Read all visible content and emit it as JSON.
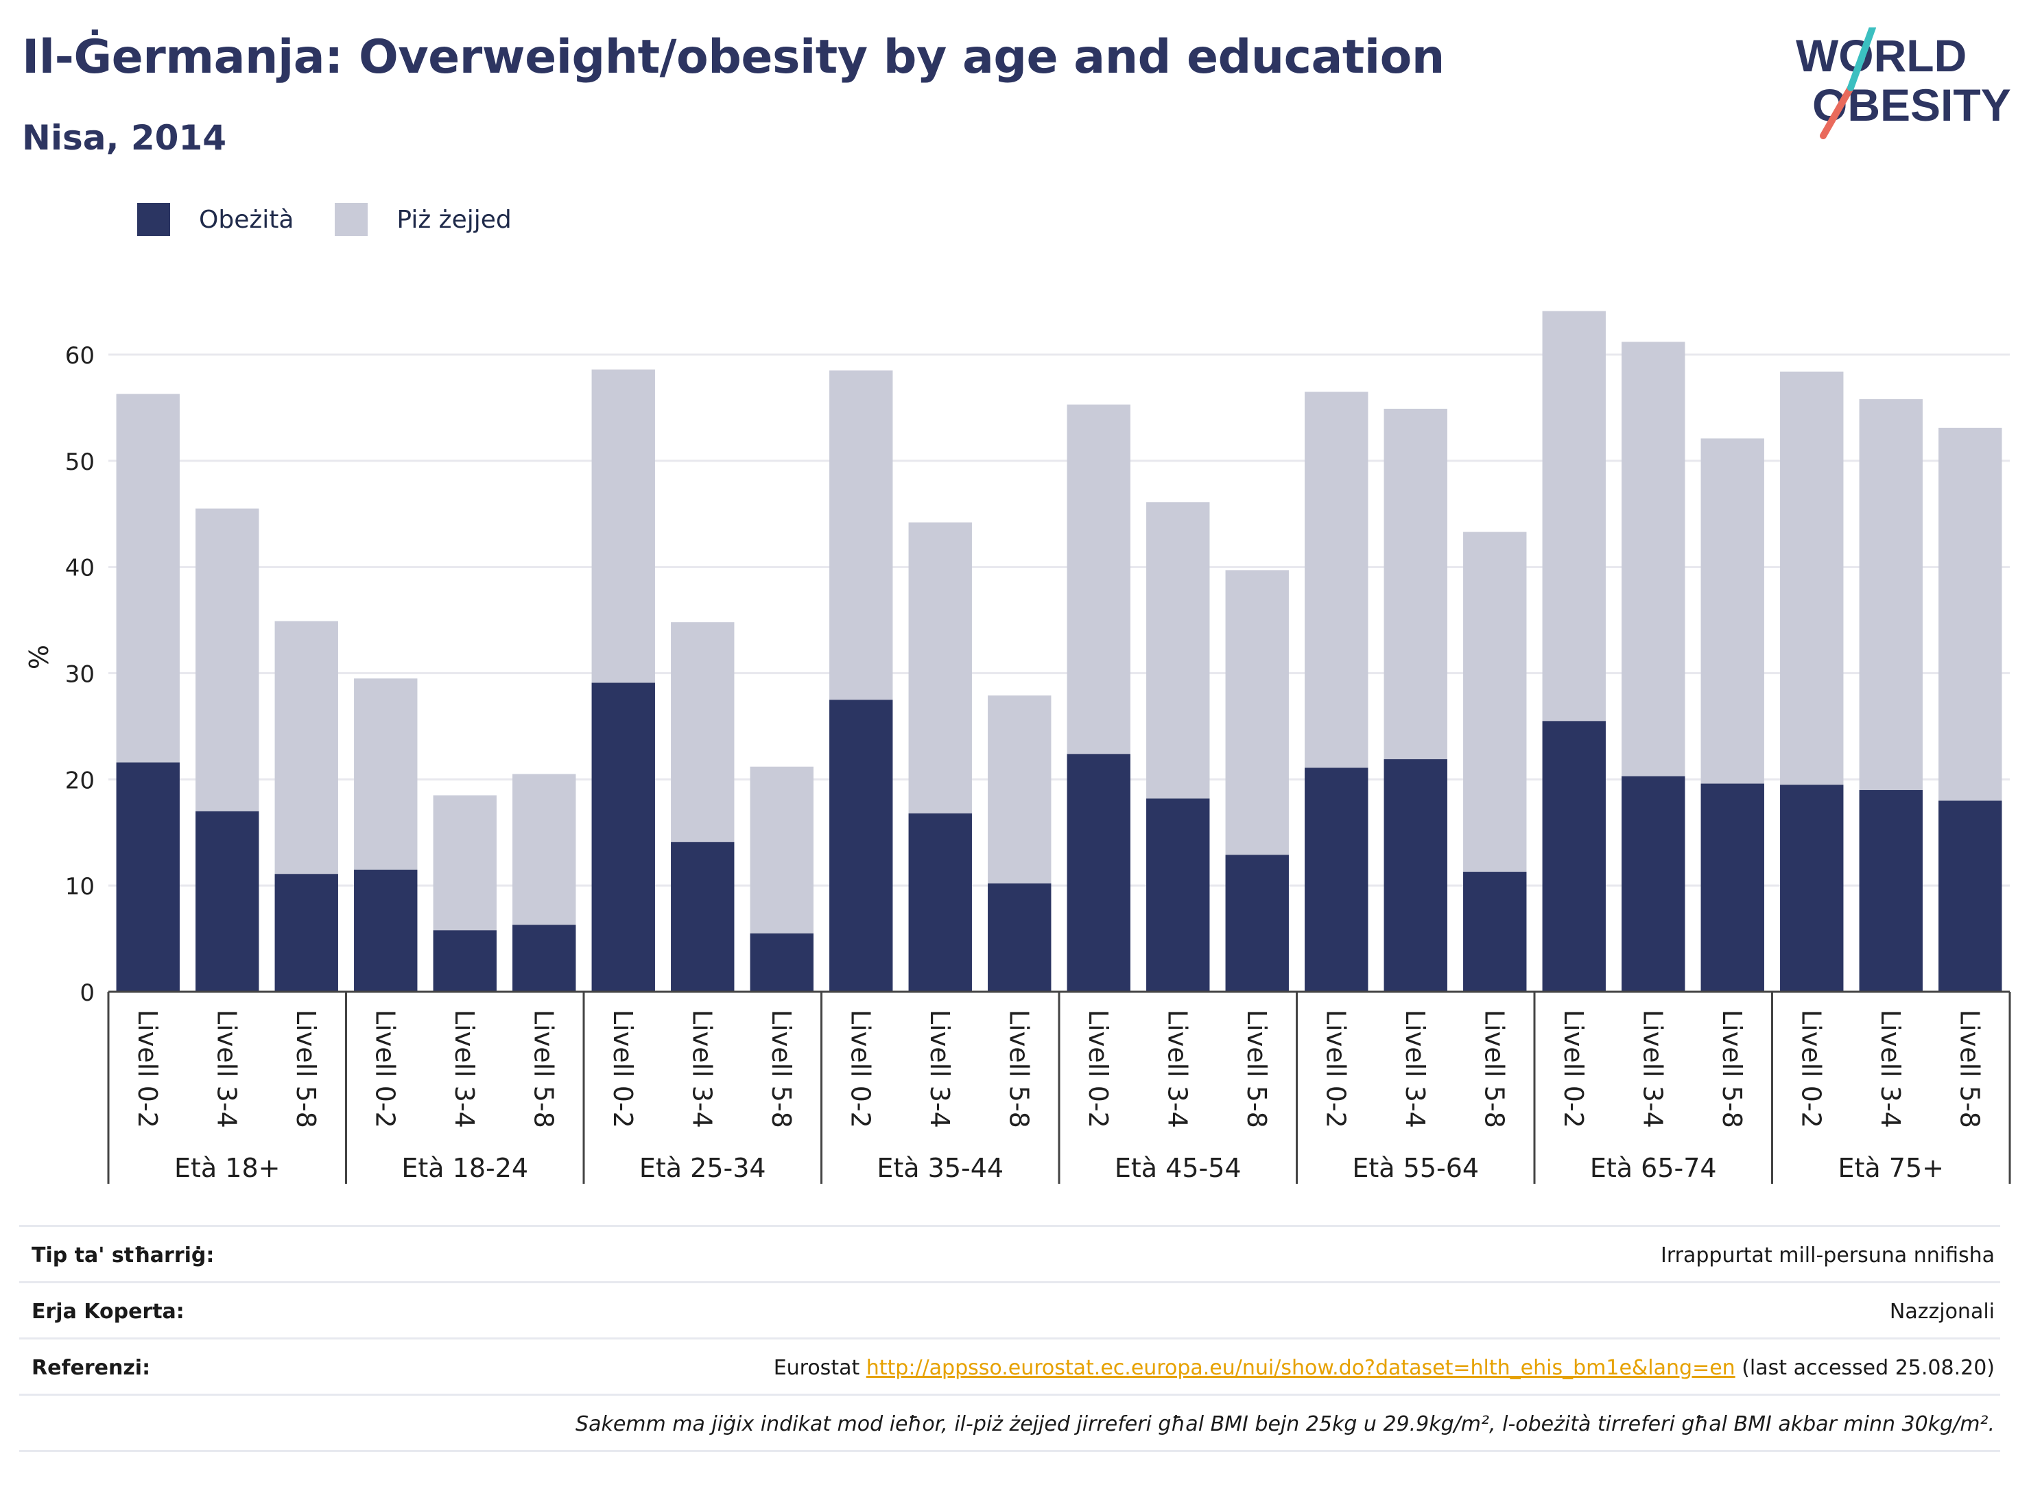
{
  "header": {
    "title": "Il-Ġermanja: Overweight/obesity by age and education",
    "subtitle": "Nisa, 2014",
    "logo_line1": "WORLD",
    "logo_line2": "OBESITY"
  },
  "colors": {
    "obese": "#2b3562",
    "overweight": "#c9cbd8",
    "logo_text": "#2d3561",
    "logo_slash_teal": "#3bbfc0",
    "logo_slash_red": "#e96a5c",
    "link": "#e6a100"
  },
  "chart_data": {
    "type": "bar",
    "stacked": true,
    "ylabel": "%",
    "ylim": [
      0,
      65
    ],
    "yticks": [
      0,
      10,
      20,
      30,
      40,
      50,
      60
    ],
    "grid": true,
    "legend_position": "top-left",
    "groups": [
      "Età 18+",
      "Età 18-24",
      "Età 25-34",
      "Età 35-44",
      "Età 45-54",
      "Età 55-64",
      "Età 65-74",
      "Età 75+"
    ],
    "levels": [
      "Livell 0-2",
      "Livell 3-4",
      "Livell 5-8"
    ],
    "series": [
      {
        "name": "Obeżità",
        "values": [
          21.6,
          17.0,
          11.1,
          11.5,
          5.8,
          6.3,
          29.1,
          14.1,
          5.5,
          27.5,
          16.8,
          10.2,
          22.4,
          18.2,
          12.9,
          21.1,
          21.9,
          11.3,
          25.5,
          20.3,
          19.6,
          19.5,
          19.0,
          18.0
        ]
      },
      {
        "name": "Piż żejjed",
        "values": [
          34.7,
          28.5,
          23.8,
          18.0,
          12.7,
          14.2,
          29.5,
          20.7,
          15.7,
          31.0,
          27.4,
          17.7,
          32.9,
          27.9,
          26.8,
          35.4,
          33.0,
          32.0,
          38.6,
          40.9,
          32.5,
          38.9,
          36.8,
          35.1
        ]
      }
    ]
  },
  "info": {
    "rows": [
      {
        "label": "Tip ta' stħarriġ:",
        "value": "Irrappurtat mill-persuna nnifisha"
      },
      {
        "label": "Erja Koperta:",
        "value": "Nazzjonali"
      },
      {
        "label": "Referenzi:",
        "value_prefix": "Eurostat ",
        "link": "http://appsso.eurostat.ec.europa.eu/nui/show.do?dataset=hlth_ehis_bm1e&lang=en",
        "value_suffix": " (last accessed 25.08.20)"
      }
    ],
    "note": "Sakemm ma jiġix indikat mod ieħor, il-piż żejjed jirreferi għal BMI bejn 25kg u 29.9kg/m², l-obeżità tirreferi għal BMI akbar minn 30kg/m²."
  }
}
